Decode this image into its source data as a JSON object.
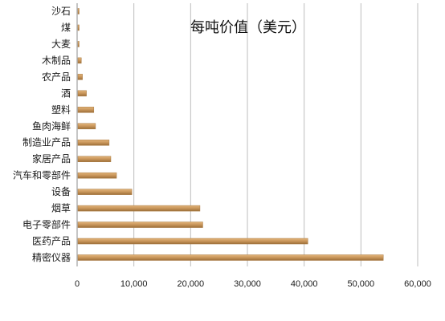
{
  "chart_data": {
    "type": "bar",
    "orientation": "horizontal",
    "title": "每吨价值（美元）",
    "categories": [
      "精密仪器",
      "医药产品",
      "电子零部件",
      "烟草",
      "设备",
      "汽车和零部件",
      "家居产品",
      "制造业产品",
      "鱼肉海鲜",
      "塑料",
      "酒",
      "农产品",
      "木制品",
      "大麦",
      "煤",
      "沙石"
    ],
    "values": [
      53800,
      40500,
      22000,
      21500,
      9500,
      6800,
      5800,
      5500,
      3100,
      2800,
      1500,
      800,
      600,
      200,
      150,
      100
    ],
    "xlim": [
      0,
      60000
    ],
    "xticks": [
      0,
      10000,
      20000,
      30000,
      40000,
      50000,
      60000
    ],
    "xtick_labels": [
      "0",
      "10,000",
      "20,000",
      "30,000",
      "40,000",
      "50,000",
      "60,000"
    ],
    "xlabel": "",
    "ylabel": "",
    "grid": "vertical",
    "legend": "none",
    "colors": {
      "bar": "#c8955a",
      "bar_dark": "#a97a42",
      "grid": "#bdbdbd",
      "axis": "#8c8c8c"
    }
  }
}
